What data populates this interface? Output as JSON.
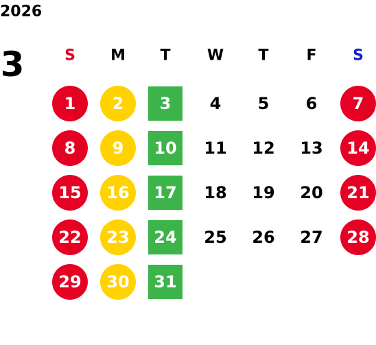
{
  "header": {
    "year": "2026",
    "month": "3"
  },
  "weekdays": [
    "S",
    "M",
    "T",
    "W",
    "T",
    "F",
    "S"
  ],
  "weeks": [
    [
      1,
      2,
      3,
      4,
      5,
      6,
      7
    ],
    [
      8,
      9,
      10,
      11,
      12,
      13,
      14
    ],
    [
      15,
      16,
      17,
      18,
      19,
      20,
      21
    ],
    [
      22,
      23,
      24,
      25,
      26,
      27,
      28
    ],
    [
      29,
      30,
      31
    ]
  ]
}
